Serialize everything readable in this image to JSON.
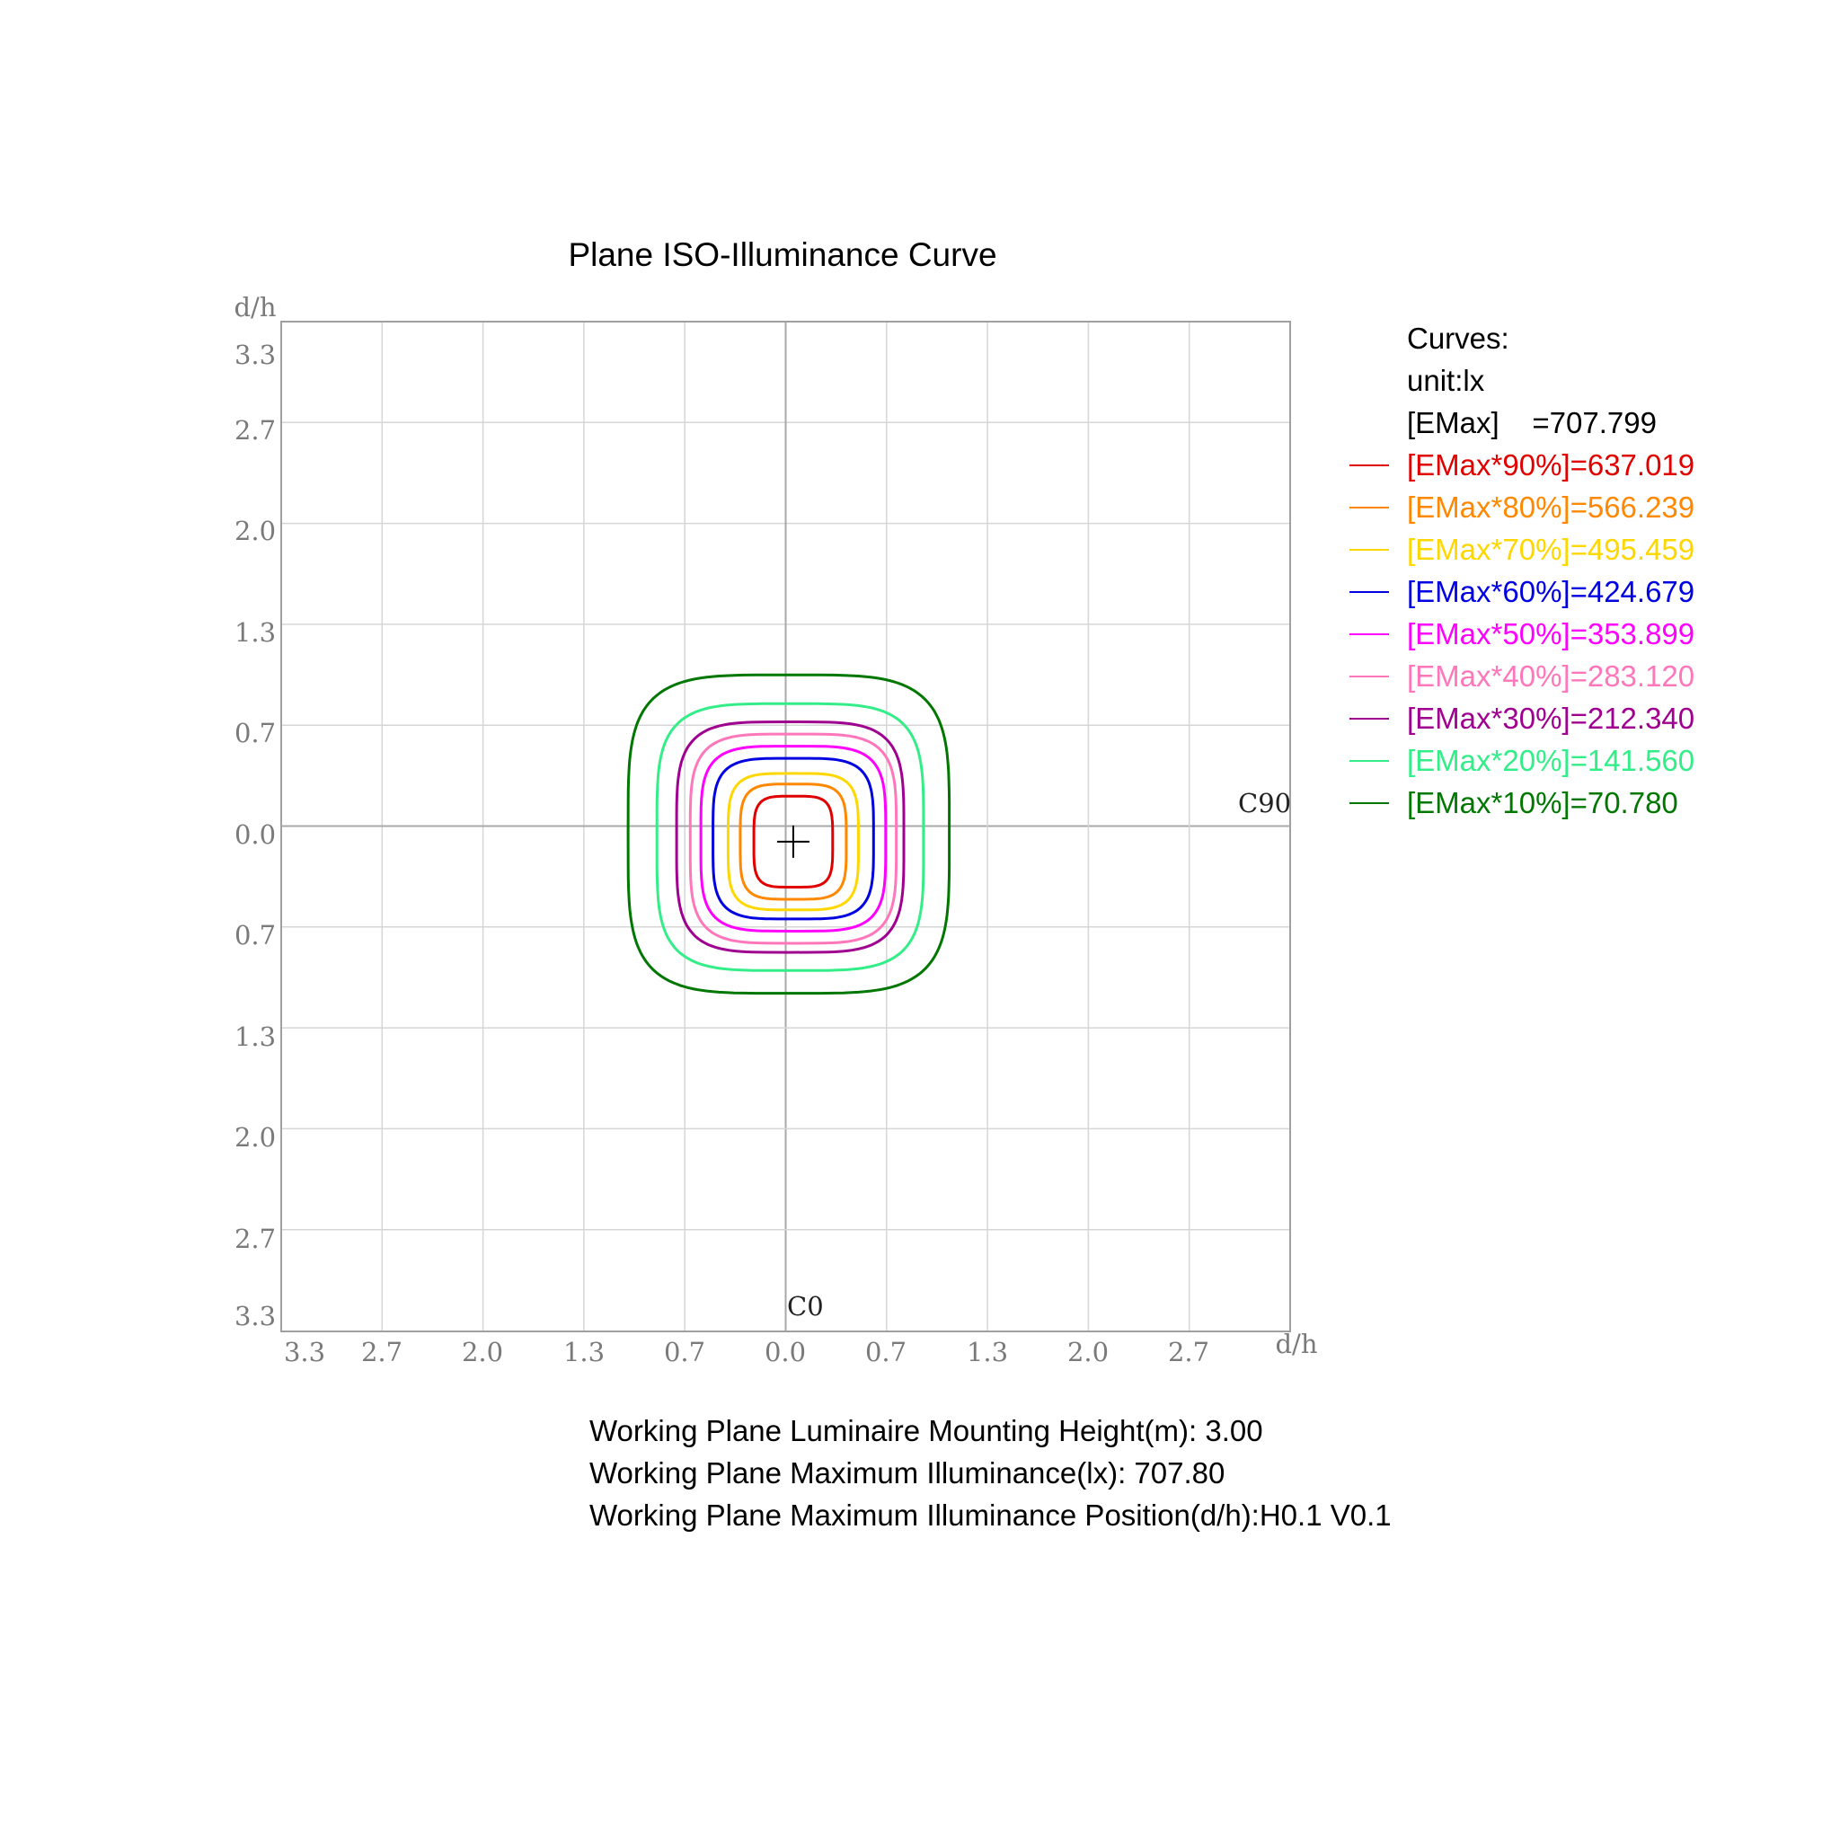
{
  "chart_data": {
    "type": "contour",
    "title": "Plane ISO-Illuminance Curve",
    "xlabel": "d/h",
    "ylabel": "d/h",
    "x_ticks": [
      "3.3",
      "2.7",
      "2.0",
      "1.3",
      "0.7",
      "0.0",
      "0.7",
      "1.3",
      "2.0",
      "2.7"
    ],
    "y_ticks": [
      "3.3",
      "2.7",
      "2.0",
      "1.3",
      "0.7",
      "0.0",
      "0.7",
      "1.3",
      "2.0",
      "2.7",
      "3.3"
    ],
    "xlim": [
      -3.33,
      3.33
    ],
    "ylim": [
      -3.33,
      3.33
    ],
    "grid": true,
    "c0_label": "C0",
    "c90_label": "C90",
    "max_position": {
      "h": 0.05,
      "v": -0.1
    },
    "legend_position": "right",
    "legend": {
      "header": [
        "Curves:",
        "unit:lx",
        "[EMax]    =707.799"
      ],
      "entries": [
        {
          "label": "[EMax*90%]=637.019",
          "color": "#e00000",
          "hx": 0.26,
          "hy": 0.3,
          "cx": 0.05,
          "cy": -0.1
        },
        {
          "label": "[EMax*80%]=566.239",
          "color": "#ff8800",
          "hx": 0.35,
          "hy": 0.38,
          "cx": 0.05,
          "cy": -0.1
        },
        {
          "label": "[EMax*70%]=495.459",
          "color": "#ffd700",
          "hx": 0.43,
          "hy": 0.45,
          "cx": 0.05,
          "cy": -0.1
        },
        {
          "label": "[EMax*60%]=424.679",
          "color": "#0000e0",
          "hx": 0.53,
          "hy": 0.53,
          "cx": 0.05,
          "cy": -0.08
        },
        {
          "label": "[EMax*50%]=353.899",
          "color": "#ff00ff",
          "hx": 0.61,
          "hy": 0.61,
          "cx": 0.05,
          "cy": -0.08
        },
        {
          "label": "[EMax*40%]=283.120",
          "color": "#ff77bb",
          "hx": 0.68,
          "hy": 0.69,
          "cx": 0.05,
          "cy": -0.08
        },
        {
          "label": "[EMax*30%]=212.340",
          "color": "#a0008f",
          "hx": 0.75,
          "hy": 0.76,
          "cx": 0.03,
          "cy": -0.07
        },
        {
          "label": "[EMax*20%]=141.560",
          "color": "#33ee88",
          "hx": 0.88,
          "hy": 0.88,
          "cx": 0.03,
          "cy": -0.07
        },
        {
          "label": "[EMax*10%]=70.780",
          "color": "#007700",
          "hx": 1.06,
          "hy": 1.05,
          "cx": 0.02,
          "cy": -0.05
        }
      ]
    }
  },
  "info": {
    "mounting_height": "Working Plane Luminaire Mounting Height(m): 3.00",
    "max_illuminance": "Working Plane Maximum Illuminance(lx): 707.80",
    "max_position": "Working Plane Maximum Illuminance Position(d/h):H0.1 V0.1"
  }
}
